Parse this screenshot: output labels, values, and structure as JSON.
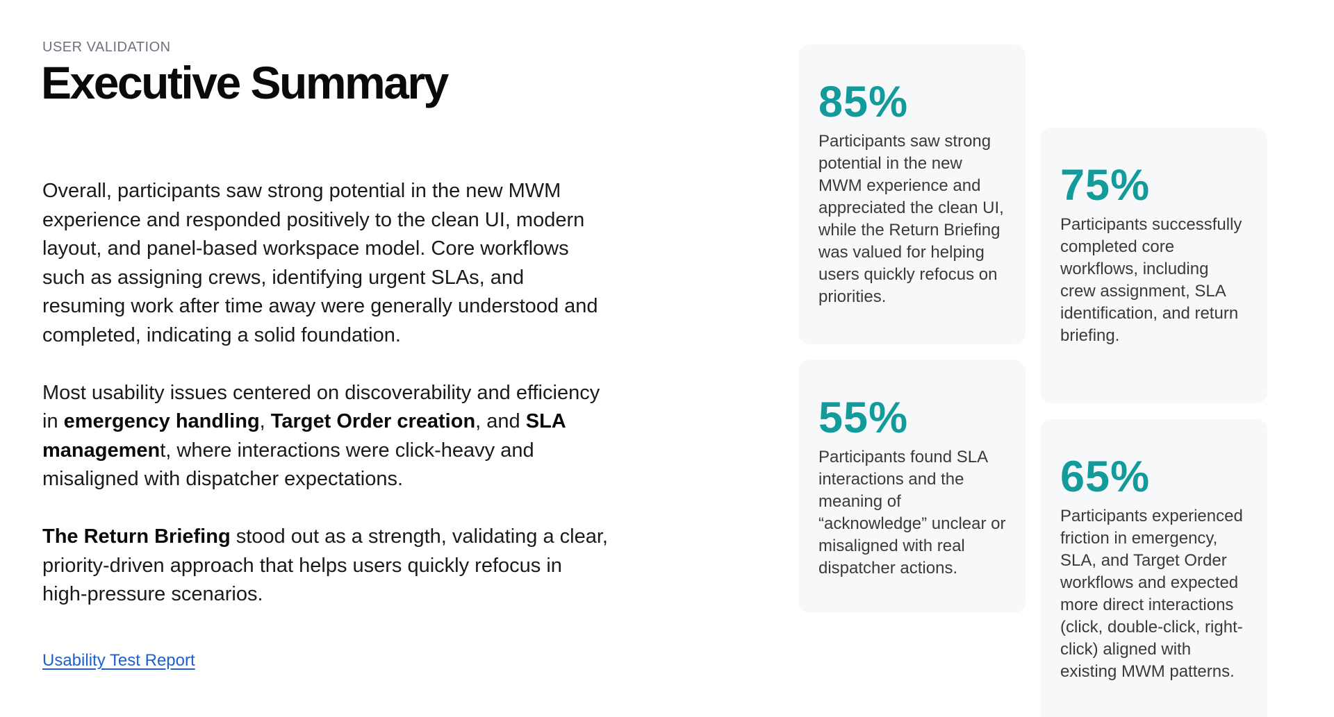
{
  "header": {
    "eyebrow": "USER VALIDATION",
    "title": "Executive Summary"
  },
  "summary": {
    "paragraph1": "Overall, participants saw strong potential in the new MWM experience and responded positively to the clean UI, modern layout, and panel-based workspace model. Core workflows such as assigning crews, identifying urgent SLAs, and resuming work after time away were generally understood and completed, indicating a solid foundation.",
    "paragraph2": {
      "intro": "Most usability issues centered on discoverability and efficiency in ",
      "bold1": "emergency handling",
      "sep1": ", ",
      "bold2": "Target Order creation",
      "sep2": ", and ",
      "bold3": "SLA managemen",
      "outro": "t, where interactions were click-heavy and misaligned with dispatcher expectations."
    },
    "paragraph3": {
      "bold": "The Return Briefing",
      "rest": " stood out as a strength, validating a clear, priority-driven approach that helps users quickly refocus in high-pressure scenarios."
    },
    "link_label": "Usability Test Report"
  },
  "stats": [
    {
      "value": "85%",
      "description": "Participants saw strong potential in the new MWM experience and appreciated the clean UI, while the Return Briefing was valued for helping users quickly refocus on priorities."
    },
    {
      "value": "75%",
      "description": "Participants successfully completed core workflows, including crew assignment, SLA identification, and return briefing."
    },
    {
      "value": "55%",
      "description": "Participants found SLA interactions and the meaning of “acknowledge” unclear or misaligned with real dispatcher actions."
    },
    {
      "value": "65%",
      "description": "Participants experienced friction in emergency, SLA, and Target Order workflows and expected more direct interactions (click, double-click, right-click) aligned with existing MWM patterns."
    }
  ],
  "colors": {
    "accent": "#139a9a",
    "link": "#1d5fd1",
    "card_background": "#f7f8fa"
  }
}
